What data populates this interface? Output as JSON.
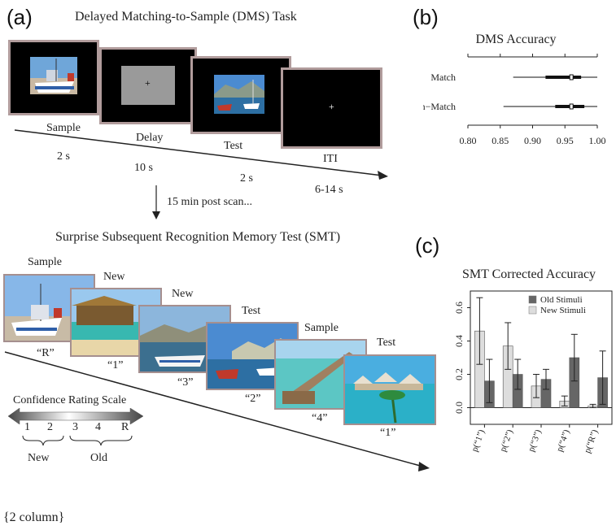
{
  "figure": {
    "panel_a": "(a)",
    "panel_b": "(b)",
    "panel_c": "(c)",
    "dms_task_title": "Delayed Matching-to-Sample (DMS) Task",
    "dms_screens": [
      "Sample",
      "Delay",
      "Test",
      "ITI"
    ],
    "dms_durations": [
      "2 s",
      "10 s",
      "2 s",
      "6-14 s"
    ],
    "post_scan_note": "15 min post scan...",
    "smt_title": "Surprise Subsequent Recognition Memory Test (SMT)",
    "smt_cards": [
      {
        "label": "Sample",
        "response": "“R”"
      },
      {
        "label": "New",
        "response": "“1”"
      },
      {
        "label": "New",
        "response": "“3”"
      },
      {
        "label": "Test",
        "response": "“2”"
      },
      {
        "label": "Sample",
        "response": "“4”"
      },
      {
        "label": "Test",
        "response": "“1”"
      }
    ],
    "confidence_title": "Confidence Rating Scale",
    "confidence_ticks": [
      "1",
      "2",
      "3",
      "4",
      "R"
    ],
    "confidence_new": "New",
    "confidence_old": "Old",
    "footer_note": "{2 column}"
  },
  "chart_data": [
    {
      "type": "box",
      "title": "DMS Accuracy",
      "categories": [
        "Match",
        "Non−Match"
      ],
      "xlim": [
        0.8,
        1.0
      ],
      "xticks": [
        "0.80",
        "0.85",
        "0.90",
        "0.95",
        "1.00"
      ],
      "series": [
        {
          "category": "Match",
          "min": 0.87,
          "q1": 0.92,
          "median": 0.96,
          "q3": 0.975,
          "max": 1.0
        },
        {
          "category": "Non−Match",
          "min": 0.855,
          "q1": 0.935,
          "median": 0.96,
          "q3": 0.98,
          "max": 1.0
        }
      ]
    },
    {
      "type": "bar",
      "title": "SMT Corrected Accuracy",
      "categories": [
        "p(“1”)",
        "p(“2”)",
        "p(“3”)",
        "p(“4”)",
        "p(“R”)"
      ],
      "ylim": [
        -0.1,
        0.7
      ],
      "yticks": [
        "0.0",
        "0.2",
        "0.4",
        "0.6"
      ],
      "legend_position": "top-right",
      "series": [
        {
          "name": "Old Stimuli",
          "color": "#666666",
          "values": [
            0.16,
            0.2,
            0.17,
            0.3,
            0.18
          ],
          "errors": [
            0.13,
            0.09,
            0.06,
            0.14,
            0.16
          ]
        },
        {
          "name": "New Stimuli",
          "color": "#dddddd",
          "values": [
            0.46,
            0.37,
            0.13,
            0.04,
            0.01
          ],
          "errors": [
            0.2,
            0.14,
            0.07,
            0.03,
            0.01
          ]
        }
      ]
    }
  ],
  "colors": {
    "screen_border": "#b19c9c",
    "old": "#666666",
    "new": "#dddddd",
    "gray_screen": "#9a9a9a"
  }
}
